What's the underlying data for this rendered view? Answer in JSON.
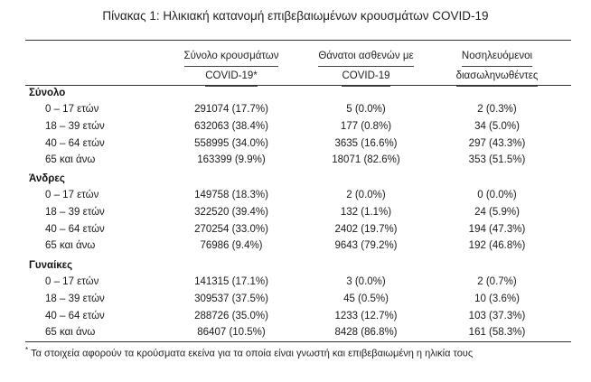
{
  "title": "Πίνακας 1: Ηλικιακή κατανομή επιβεβαιωμένων κρουσμάτων COVID-19",
  "columns": [
    {
      "line1": "Σύνολο κρουσμάτων",
      "line2": "COVID-19*"
    },
    {
      "line1": "Θάνατοι ασθενών με",
      "line2": "COVID-19"
    },
    {
      "line1": "Νοσηλευόμενοι",
      "line2": "διασωληνωθέντες"
    }
  ],
  "sections": [
    {
      "label": "Σύνολο",
      "rows": [
        {
          "age": "0 – 17 ετών",
          "cases": "291074 (17.7%)",
          "deaths": "5 (0.0%)",
          "intubated": "2 (0.3%)"
        },
        {
          "age": "18 – 39 ετών",
          "cases": "632063 (38.4%)",
          "deaths": "177 (0.8%)",
          "intubated": "34 (5.0%)"
        },
        {
          "age": "40 – 64 ετών",
          "cases": "558995 (34.0%)",
          "deaths": "3635 (16.6%)",
          "intubated": "297 (43.3%)"
        },
        {
          "age": "65 και άνω",
          "cases": "163399 (9.9%)",
          "deaths": "18071 (82.6%)",
          "intubated": "353 (51.5%)"
        }
      ]
    },
    {
      "label": "Άνδρες",
      "rows": [
        {
          "age": "0 – 17 ετών",
          "cases": "149758 (18.3%)",
          "deaths": "2 (0.0%)",
          "intubated": "0 (0.0%)"
        },
        {
          "age": "18 – 39 ετών",
          "cases": "322520 (39.4%)",
          "deaths": "132 (1.1%)",
          "intubated": "24 (5.9%)"
        },
        {
          "age": "40 – 64 ετών",
          "cases": "270254 (33.0%)",
          "deaths": "2402 (19.7%)",
          "intubated": "194 (47.3%)"
        },
        {
          "age": "65 και άνω",
          "cases": "76986 (9.4%)",
          "deaths": "9643 (79.2%)",
          "intubated": "192 (46.8%)"
        }
      ]
    },
    {
      "label": "Γυναίκες",
      "rows": [
        {
          "age": "0 – 17 ετών",
          "cases": "141315 (17.1%)",
          "deaths": "3 (0.0%)",
          "intubated": "2 (0.7%)"
        },
        {
          "age": "18 – 39 ετών",
          "cases": "309537 (37.5%)",
          "deaths": "45 (0.5%)",
          "intubated": "10 (3.6%)"
        },
        {
          "age": "40 – 64 ετών",
          "cases": "288726 (35.0%)",
          "deaths": "1233 (12.7%)",
          "intubated": "103 (37.3%)"
        },
        {
          "age": "65 και άνω",
          "cases": "86407 (10.5%)",
          "deaths": "8428 (86.8%)",
          "intubated": "161 (58.3%)"
        }
      ]
    }
  ],
  "footnote": {
    "mark": "*",
    "text": "Τα στοιχεία αφορούν τα κρούσματα εκείνα για τα οποία είναι γνωστή και επιβεβαιωμένη η ηλικία τους"
  }
}
